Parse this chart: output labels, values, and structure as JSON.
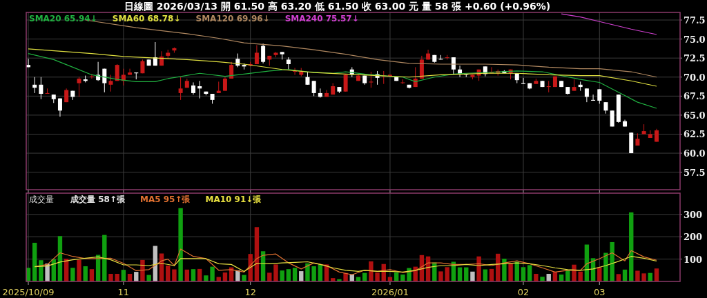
{
  "chart_data": [
    {
      "type": "candlestick",
      "title": "日線圖 2026/03/13 開 61.50 高 63.20 低 61.50 收 63.00 元 量 58 張 +0.60 (+0.96%)",
      "categories": [
        "2025/10/09",
        null,
        null,
        null,
        null,
        null,
        null,
        null,
        null,
        null,
        null,
        null,
        null,
        null,
        null,
        "11",
        null,
        null,
        null,
        null,
        null,
        null,
        null,
        null,
        null,
        null,
        null,
        null,
        null,
        null,
        null,
        null,
        null,
        null,
        null,
        "12",
        null,
        null,
        null,
        null,
        null,
        null,
        null,
        null,
        null,
        null,
        null,
        null,
        null,
        null,
        null,
        null,
        null,
        null,
        null,
        null,
        null,
        "2026/01",
        null,
        null,
        null,
        null,
        null,
        null,
        null,
        null,
        null,
        null,
        null,
        null,
        null,
        null,
        null,
        null,
        null,
        null,
        null,
        null,
        "02",
        null,
        null,
        null,
        null,
        null,
        null,
        null,
        null,
        null,
        null,
        null,
        "03",
        null,
        null,
        null,
        null,
        null,
        null,
        null,
        null,
        null
      ],
      "ohlc": [
        [
          71.6,
          72.4,
          71.3,
          71.3
        ],
        [
          69.0,
          70.0,
          67.9,
          68.6
        ],
        [
          69.0,
          70.0,
          67.1,
          67.8
        ],
        [
          67.9,
          68.5,
          67.8,
          67.9
        ],
        [
          67.7,
          67.7,
          66.6,
          67.1
        ],
        [
          67.2,
          67.2,
          64.8,
          65.6
        ],
        [
          66.7,
          68.5,
          66.7,
          68.3
        ],
        [
          68.2,
          68.2,
          67.0,
          67.4
        ],
        [
          69.2,
          70.0,
          67.4,
          69.8
        ],
        [
          69.7,
          70.2,
          69.3,
          69.5
        ],
        [
          70.1,
          70.4,
          69.8,
          70.1
        ],
        [
          70.3,
          72.0,
          69.5,
          69.6
        ],
        [
          71.1,
          71.1,
          68.0,
          69.2
        ],
        [
          69.0,
          70.3,
          68.1,
          69.5
        ],
        [
          69.5,
          71.7,
          69.5,
          71.6
        ],
        [
          69.5,
          71.1,
          68.9,
          70.3
        ],
        [
          70.3,
          71.1,
          70.3,
          70.6
        ],
        [
          70.6,
          70.6,
          69.7,
          70.5
        ],
        [
          70.5,
          72.3,
          70.5,
          72.1
        ],
        [
          72.3,
          72.3,
          71.5,
          71.5
        ],
        [
          72.6,
          74.6,
          71.5,
          71.5
        ],
        [
          71.5,
          73.4,
          71.5,
          72.7
        ],
        [
          72.8,
          73.6,
          72.4,
          73.2
        ],
        [
          73.5,
          73.9,
          73.2,
          73.8
        ],
        [
          67.9,
          70.0,
          67.0,
          68.5
        ],
        [
          68.6,
          69.8,
          68.6,
          69.5
        ],
        [
          68.9,
          69.3,
          67.7,
          67.9
        ],
        [
          68.8,
          69.5,
          67.2,
          68.5
        ],
        [
          68.1,
          68.1,
          67.6,
          67.8
        ],
        [
          67.8,
          67.8,
          66.5,
          67.0
        ],
        [
          67.9,
          69.4,
          67.9,
          68.2
        ],
        [
          68.2,
          70.0,
          68.2,
          69.8
        ],
        [
          69.8,
          72.0,
          69.8,
          71.6
        ],
        [
          72.4,
          73.1,
          71.3,
          71.5
        ],
        [
          71.6,
          71.8,
          71.0,
          71.4
        ],
        [
          71.5,
          72.0,
          71.4,
          71.7
        ],
        [
          71.7,
          74.2,
          71.7,
          73.2
        ],
        [
          74.1,
          74.4,
          71.8,
          72.0
        ],
        [
          72.3,
          72.8,
          71.5,
          72.8
        ],
        [
          72.9,
          73.3,
          72.6,
          73.2
        ],
        [
          73.3,
          73.3,
          72.3,
          73.0
        ],
        [
          72.3,
          72.6,
          71.0,
          71.7
        ],
        [
          70.8,
          71.2,
          70.3,
          70.8
        ],
        [
          70.3,
          71.2,
          70.1,
          70.7
        ],
        [
          70.0,
          70.7,
          69.0,
          69.0
        ],
        [
          69.5,
          69.5,
          67.5,
          67.9
        ],
        [
          67.9,
          68.5,
          67.3,
          67.4
        ],
        [
          67.4,
          68.3,
          67.4,
          67.9
        ],
        [
          67.7,
          69.2,
          67.7,
          68.8
        ],
        [
          68.7,
          68.7,
          67.9,
          68.1
        ],
        [
          68.1,
          70.3,
          68.1,
          70.3
        ],
        [
          71.0,
          71.3,
          70.0,
          70.3
        ],
        [
          69.5,
          70.4,
          69.5,
          70.2
        ],
        [
          70.2,
          70.2,
          69.0,
          69.2
        ],
        [
          69.3,
          70.7,
          68.6,
          69.4
        ],
        [
          70.4,
          70.8,
          69.0,
          69.9
        ],
        [
          70.1,
          70.8,
          69.1,
          70.2
        ],
        [
          70.1,
          70.3,
          70.1,
          70.3
        ],
        [
          70.0,
          70.0,
          69.5,
          69.5
        ],
        [
          69.3,
          69.7,
          69.1,
          69.3
        ],
        [
          69.0,
          69.0,
          68.5,
          68.6
        ],
        [
          68.7,
          71.3,
          68.7,
          69.8
        ],
        [
          69.8,
          72.8,
          69.8,
          72.3
        ],
        [
          72.3,
          73.6,
          72.3,
          73.1
        ],
        [
          72.9,
          72.9,
          71.9,
          72.0
        ],
        [
          72.4,
          72.9,
          72.3,
          72.3
        ],
        [
          72.6,
          72.9,
          72.3,
          72.6
        ],
        [
          72.6,
          72.6,
          70.3,
          71.0
        ],
        [
          71.0,
          71.5,
          70.0,
          70.4
        ],
        [
          70.4,
          70.4,
          70.0,
          70.3
        ],
        [
          70.0,
          70.3,
          69.7,
          70.3
        ],
        [
          70.2,
          71.0,
          69.5,
          71.0
        ],
        [
          71.4,
          71.4,
          70.1,
          70.4
        ],
        [
          70.5,
          71.3,
          70.5,
          70.7
        ],
        [
          70.5,
          71.0,
          70.2,
          70.8
        ],
        [
          70.8,
          70.9,
          70.5,
          70.5
        ],
        [
          70.5,
          71.0,
          69.7,
          71.0
        ],
        [
          70.5,
          70.5,
          69.2,
          69.6
        ],
        [
          69.2,
          69.9,
          69.1,
          69.1
        ],
        [
          69.2,
          69.2,
          68.4,
          68.5
        ],
        [
          69.1,
          69.8,
          69.1,
          69.5
        ],
        [
          69.5,
          69.5,
          68.7,
          68.7
        ],
        [
          68.7,
          69.5,
          68.0,
          68.8
        ],
        [
          68.7,
          70.1,
          68.7,
          70.1
        ],
        [
          69.5,
          69.5,
          68.7,
          68.7
        ],
        [
          68.7,
          68.7,
          67.7,
          67.8
        ],
        [
          68.2,
          69.7,
          68.2,
          68.7
        ],
        [
          69.0,
          69.4,
          68.2,
          68.7
        ],
        [
          68.5,
          68.5,
          66.7,
          67.4
        ],
        [
          67.0,
          67.7,
          66.9,
          66.9
        ],
        [
          68.4,
          68.4,
          66.5,
          66.9
        ],
        [
          66.7,
          66.7,
          65.2,
          65.6
        ],
        [
          65.6,
          65.6,
          63.5,
          63.5
        ],
        [
          67.7,
          67.7,
          64.0,
          64.1
        ],
        [
          64.2,
          64.4,
          63.5,
          63.5
        ],
        [
          62.7,
          62.7,
          60.0,
          60.0
        ],
        [
          61.0,
          62.6,
          61.0,
          61.9
        ],
        [
          62.5,
          63.8,
          62.5,
          62.9
        ],
        [
          62.0,
          63.0,
          62.0,
          62.5
        ],
        [
          61.5,
          63.2,
          61.5,
          63.0
        ]
      ],
      "series": [
        {
          "name": "SMA20 65.94↓",
          "type": "line",
          "color": "#20b040",
          "values": [
            73.1,
            null,
            null,
            null,
            72.3,
            null,
            null,
            71.3,
            null,
            null,
            70.3,
            null,
            null,
            null,
            69.7,
            null,
            null,
            69.4,
            null,
            null,
            69.4,
            null,
            69.8,
            null,
            null,
            null,
            null,
            70.5,
            null,
            null,
            null,
            70.1,
            null,
            null,
            70.4,
            null,
            null,
            null,
            70.8,
            null,
            null,
            71.0,
            null,
            null,
            70.7,
            null,
            null,
            null,
            70.5,
            null,
            70.7,
            null,
            null,
            70.4,
            null,
            null,
            null,
            70.1,
            null,
            70.0,
            null,
            69.4,
            null,
            null,
            70.0,
            null,
            null,
            70.4,
            null,
            70.5,
            null,
            null,
            70.6,
            null,
            null,
            null,
            null,
            70.8,
            null,
            null,
            null,
            70.7,
            null,
            null,
            70.2,
            null,
            null,
            69.7,
            null,
            null,
            69.3,
            null,
            null,
            68.0,
            null,
            null,
            66.7,
            null,
            null,
            65.9
          ]
        },
        {
          "name": "SMA60 68.78↓",
          "type": "line",
          "color": "#e0e040",
          "values": [
            73.7,
            null,
            null,
            null,
            null,
            null,
            null,
            null,
            null,
            null,
            73.1,
            null,
            null,
            null,
            null,
            72.7,
            null,
            null,
            null,
            null,
            72.5,
            null,
            null,
            null,
            null,
            72.3,
            null,
            null,
            null,
            null,
            72.0,
            null,
            null,
            null,
            71.7,
            null,
            null,
            null,
            null,
            null,
            71.0,
            null,
            null,
            null,
            null,
            70.6,
            null,
            null,
            null,
            null,
            70.4,
            null,
            null,
            null,
            null,
            70.2,
            null,
            null,
            null,
            null,
            70.0,
            null,
            null,
            null,
            null,
            70.3,
            null,
            null,
            null,
            70.4,
            null,
            null,
            70.5,
            null,
            null,
            null,
            null,
            70.5,
            null,
            null,
            null,
            null,
            70.3,
            null,
            null,
            null,
            null,
            70.2,
            null,
            null,
            70.2,
            null,
            null,
            null,
            null,
            69.5,
            null,
            null,
            null,
            68.8
          ]
        },
        {
          "name": "SMA120 69.96↓",
          "type": "line",
          "color": "#b08860",
          "values": [
            null,
            null,
            null,
            null,
            null,
            null,
            null,
            null,
            null,
            77.5,
            null,
            null,
            null,
            null,
            null,
            null,
            null,
            76.5,
            null,
            null,
            null,
            null,
            null,
            null,
            null,
            75.7,
            null,
            null,
            null,
            null,
            75.1,
            null,
            null,
            null,
            74.5,
            null,
            null,
            null,
            null,
            null,
            74.1,
            null,
            null,
            null,
            null,
            73.6,
            null,
            null,
            null,
            null,
            73.0,
            null,
            null,
            null,
            null,
            72.3,
            null,
            null,
            null,
            null,
            71.8,
            null,
            null,
            null,
            null,
            71.7,
            null,
            null,
            null,
            71.7,
            null,
            null,
            71.7,
            null,
            null,
            null,
            null,
            71.6,
            null,
            null,
            null,
            null,
            71.3,
            null,
            null,
            null,
            null,
            71.1,
            null,
            null,
            71.1,
            null,
            null,
            null,
            null,
            70.7,
            null,
            null,
            null,
            70.0
          ]
        },
        {
          "name": "SMA240 75.57↓",
          "type": "line",
          "color": "#d040d0",
          "values": [
            null,
            null,
            null,
            null,
            null,
            null,
            null,
            null,
            null,
            null,
            null,
            null,
            null,
            null,
            null,
            null,
            null,
            null,
            null,
            null,
            null,
            null,
            null,
            null,
            null,
            null,
            null,
            null,
            null,
            null,
            null,
            null,
            null,
            null,
            null,
            null,
            null,
            null,
            null,
            null,
            null,
            null,
            null,
            null,
            null,
            null,
            null,
            null,
            null,
            null,
            null,
            null,
            null,
            null,
            null,
            null,
            null,
            null,
            null,
            null,
            null,
            null,
            null,
            null,
            null,
            null,
            null,
            null,
            null,
            null,
            null,
            null,
            null,
            null,
            null,
            null,
            null,
            null,
            null,
            null,
            null,
            null,
            null,
            null,
            78.3,
            null,
            null,
            77.9,
            null,
            null,
            77.3,
            null,
            null,
            null,
            null,
            76.3,
            null,
            null,
            null,
            75.6
          ]
        }
      ],
      "ylim": [
        55.2,
        78.5
      ],
      "yticks": [
        57.5,
        {
          "value": 60,
          "label": "60.0"
        },
        62.5,
        {
          "value": 65,
          "label": "65.0"
        },
        67.5,
        {
          "value": 70,
          "label": "70.0"
        },
        72.5,
        {
          "value": 75,
          "label": "75.0"
        },
        77.5
      ],
      "grid": true,
      "legend": "top left",
      "tick_labels": "y"
    },
    {
      "type": "bar",
      "title": "成交量",
      "categories": [
        "2025/10/09",
        null,
        null,
        null,
        null,
        null,
        null,
        null,
        null,
        null,
        null,
        null,
        null,
        null,
        null,
        "11",
        null,
        null,
        null,
        null,
        null,
        null,
        null,
        null,
        null,
        null,
        null,
        null,
        null,
        null,
        null,
        null,
        null,
        null,
        null,
        "12",
        null,
        null,
        null,
        null,
        null,
        null,
        null,
        null,
        null,
        null,
        null,
        null,
        null,
        null,
        null,
        null,
        null,
        null,
        null,
        null,
        null,
        "2026/01",
        null,
        null,
        null,
        null,
        null,
        null,
        null,
        null,
        null,
        null,
        null,
        null,
        null,
        null,
        null,
        null,
        null,
        null,
        null,
        null,
        "02",
        null,
        null,
        null,
        null,
        null,
        null,
        null,
        null,
        null,
        null,
        null,
        "03",
        null,
        null,
        null,
        null,
        null,
        null,
        null,
        null,
        null
      ],
      "series": [
        {
          "name": "成交量 58↑張",
          "type": "bar",
          "values": [
            61,
            173,
            95,
            80,
            99,
            203,
            102,
            61,
            97,
            68,
            55,
            119,
            208,
            34,
            34,
            52,
            34,
            43,
            96,
            29,
            159,
            125,
            71,
            54,
            328,
            53,
            55,
            56,
            27,
            66,
            20,
            40,
            63,
            50,
            29,
            123,
            243,
            135,
            39,
            76,
            49,
            55,
            61,
            46,
            81,
            68,
            76,
            76,
            15,
            10,
            38,
            32,
            20,
            38,
            90,
            40,
            78,
            20,
            40,
            31,
            60,
            66,
            118,
            112,
            85,
            45,
            64,
            88,
            63,
            63,
            44,
            112,
            54,
            56,
            124,
            102,
            79,
            88,
            64,
            73,
            34,
            21,
            34,
            42,
            31,
            52,
            75,
            44,
            165,
            104,
            63,
            128,
            176,
            33,
            53,
            309,
            48,
            36,
            38,
            58
          ],
          "colors": [
            "#10a010",
            "#10a010",
            "#10a010",
            "#c0c0c0",
            "#10a010",
            "#10a010",
            "#b01010",
            "#10a010",
            "#b01010",
            "#10a010",
            "#b01010",
            "#10a010",
            "#10a010",
            "#b01010",
            "#b01010",
            "#10a010",
            "#b01010",
            "#c0c0c0",
            "#b01010",
            "#10a010",
            "#c0c0c0",
            "#b01010",
            "#b01010",
            "#b01010",
            "#10a010",
            "#b01010",
            "#10a010",
            "#b01010",
            "#10a010",
            "#10a010",
            "#b01010",
            "#b01010",
            "#b01010",
            "#c0c0c0",
            "#10a010",
            "#b01010",
            "#b01010",
            "#10a010",
            "#b01010",
            "#b01010",
            "#10a010",
            "#10a010",
            "#10a010",
            "#c0c0c0",
            "#10a010",
            "#10a010",
            "#10a010",
            "#b01010",
            "#b01010",
            "#10a010",
            "#b01010",
            "#c0c0c0",
            "#10a010",
            "#10a010",
            "#b01010",
            "#b01010",
            "#b01010",
            "#b01010",
            "#10a010",
            "#10a010",
            "#10a010",
            "#b01010",
            "#b01010",
            "#b01010",
            "#10a010",
            "#b01010",
            "#b01010",
            "#10a010",
            "#10a010",
            "#10a010",
            "#c0c0c0",
            "#b01010",
            "#10a010",
            "#b01010",
            "#b01010",
            "#10a010",
            "#b01010",
            "#10a010",
            "#10a010",
            "#10a010",
            "#b01010",
            "#10a010",
            "#c0c0c0",
            "#b01010",
            "#10a010",
            "#10a010",
            "#b01010",
            "#b01010",
            "#10a010",
            "#10a010",
            "#b01010",
            "#10a010",
            "#10a010",
            "#b01010",
            "#10a010",
            "#10a010",
            "#b01010",
            "#b01010",
            "#10a010",
            "#b01010"
          ]
        },
        {
          "name": "MA5 95↑張",
          "type": "line",
          "color": "#e07030",
          "values": [
            null,
            66,
            null,
            76,
            null,
            128,
            null,
            112,
            null,
            102,
            null,
            102,
            null,
            104,
            null,
            81,
            null,
            48,
            null,
            53,
            null,
            92,
            100,
            71,
            145,
            null,
            112,
            null,
            102,
            null,
            50,
            null,
            53,
            null,
            42,
            null,
            102,
            117,
            null,
            123,
            null,
            83,
            null,
            56,
            null,
            83,
            null,
            71,
            null,
            42,
            null,
            30,
            null,
            50,
            null,
            45,
            null,
            53,
            null,
            40,
            null,
            48,
            null,
            83,
            null,
            83,
            null,
            76,
            null,
            76,
            null,
            79,
            null,
            71,
            null,
            83,
            null,
            92,
            null,
            79,
            null,
            61,
            null,
            42,
            null,
            50,
            null,
            50,
            79,
            null,
            102,
            null,
            128,
            null,
            92,
            138,
            null,
            110,
            null,
            95
          ]
        },
        {
          "name": "MA10 91↓張",
          "type": "line",
          "color": "#e8e040",
          "values": [
            null,
            66,
            null,
            69,
            null,
            87,
            null,
            97,
            null,
            104,
            null,
            110,
            null,
            97,
            null,
            74,
            null,
            74,
            null,
            71,
            null,
            81,
            null,
            71,
            102,
            null,
            102,
            null,
            102,
            null,
            79,
            null,
            76,
            null,
            45,
            null,
            81,
            null,
            79,
            null,
            83,
            null,
            85,
            null,
            88,
            null,
            76,
            null,
            61,
            null,
            50,
            null,
            45,
            50,
            null,
            45,
            null,
            45,
            null,
            42,
            null,
            50,
            null,
            63,
            null,
            71,
            null,
            71,
            null,
            76,
            null,
            71,
            null,
            76,
            null,
            79,
            null,
            83,
            null,
            79,
            null,
            71,
            null,
            61,
            null,
            53,
            null,
            50,
            null,
            56,
            null,
            71,
            null,
            90,
            null,
            112,
            null,
            104,
            null,
            91
          ]
        }
      ],
      "ylim": [
        0,
        395
      ],
      "yticks": [
        100,
        200,
        300
      ],
      "grid": true,
      "legend": "top left"
    }
  ]
}
